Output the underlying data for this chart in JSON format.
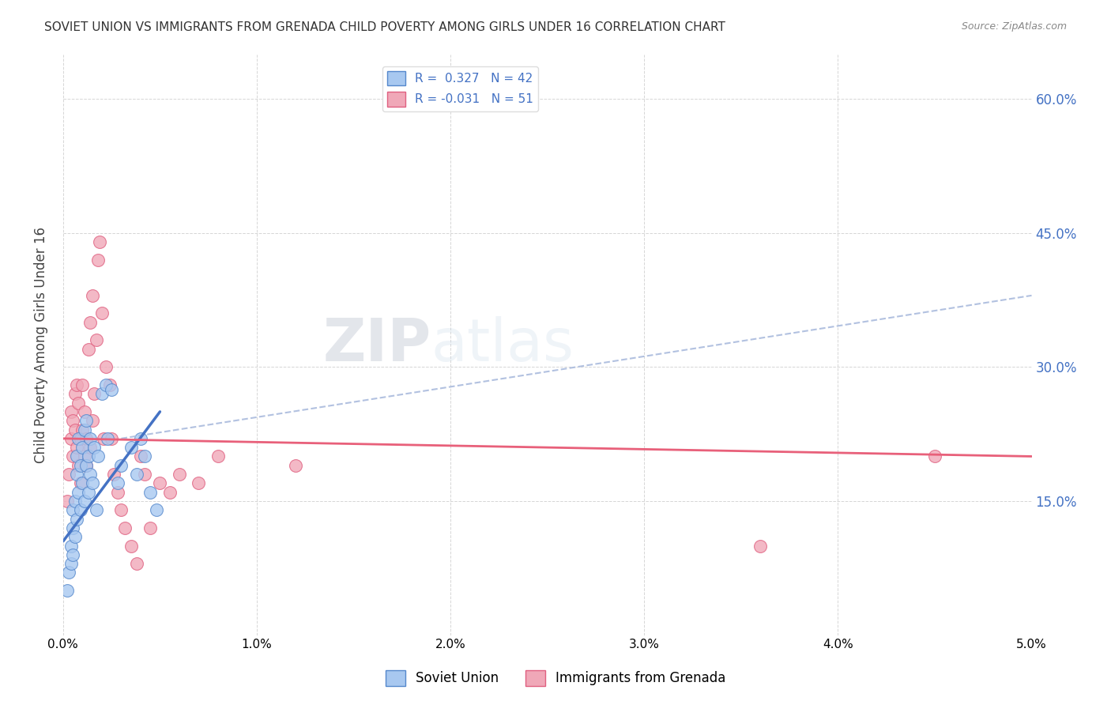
{
  "title": "SOVIET UNION VS IMMIGRANTS FROM GRENADA CHILD POVERTY AMONG GIRLS UNDER 16 CORRELATION CHART",
  "source": "Source: ZipAtlas.com",
  "ylabel": "Child Poverty Among Girls Under 16",
  "xlim": [
    0.0,
    5.0
  ],
  "ylim": [
    0.0,
    65.0
  ],
  "yticks": [
    15.0,
    30.0,
    45.0,
    60.0
  ],
  "xticks": [
    0.0,
    1.0,
    2.0,
    3.0,
    4.0,
    5.0
  ],
  "series1_label": "Soviet Union",
  "series2_label": "Immigrants from Grenada",
  "series1_R": 0.327,
  "series1_N": 42,
  "series2_R": -0.031,
  "series2_N": 51,
  "series1_color": "#a8c8f0",
  "series2_color": "#f0a8b8",
  "series1_edge_color": "#5588cc",
  "series2_edge_color": "#e06080",
  "trend1_color": "#4472c4",
  "trend2_color": "#e8607a",
  "dash_color": "#aabbdd",
  "background_color": "#ffffff",
  "grid_color": "#cccccc",
  "right_axis_color": "#4472c4",
  "watermark": "ZIPatlas",
  "series1_x": [
    0.02,
    0.03,
    0.04,
    0.04,
    0.05,
    0.05,
    0.05,
    0.06,
    0.06,
    0.07,
    0.07,
    0.07,
    0.08,
    0.08,
    0.09,
    0.09,
    0.1,
    0.1,
    0.11,
    0.11,
    0.12,
    0.12,
    0.13,
    0.13,
    0.14,
    0.14,
    0.15,
    0.16,
    0.17,
    0.18,
    0.2,
    0.22,
    0.23,
    0.25,
    0.28,
    0.3,
    0.35,
    0.38,
    0.4,
    0.42,
    0.45,
    0.48
  ],
  "series1_y": [
    5.0,
    7.0,
    8.0,
    10.0,
    9.0,
    12.0,
    14.0,
    11.0,
    15.0,
    13.0,
    18.0,
    20.0,
    16.0,
    22.0,
    14.0,
    19.0,
    21.0,
    17.0,
    23.0,
    15.0,
    19.0,
    24.0,
    16.0,
    20.0,
    22.0,
    18.0,
    17.0,
    21.0,
    14.0,
    20.0,
    27.0,
    28.0,
    22.0,
    27.5,
    17.0,
    19.0,
    21.0,
    18.0,
    22.0,
    20.0,
    16.0,
    14.0
  ],
  "series2_x": [
    0.02,
    0.03,
    0.04,
    0.04,
    0.05,
    0.05,
    0.06,
    0.06,
    0.07,
    0.07,
    0.08,
    0.08,
    0.09,
    0.09,
    0.1,
    0.1,
    0.11,
    0.11,
    0.12,
    0.12,
    0.13,
    0.14,
    0.14,
    0.15,
    0.15,
    0.16,
    0.17,
    0.18,
    0.19,
    0.2,
    0.21,
    0.22,
    0.24,
    0.25,
    0.26,
    0.28,
    0.3,
    0.32,
    0.35,
    0.38,
    0.4,
    0.42,
    0.45,
    0.5,
    0.55,
    0.6,
    0.7,
    0.8,
    1.2,
    3.6,
    4.5
  ],
  "series2_y": [
    15.0,
    18.0,
    22.0,
    25.0,
    20.0,
    24.0,
    23.0,
    27.0,
    21.0,
    28.0,
    19.0,
    26.0,
    17.0,
    22.0,
    23.0,
    28.0,
    20.0,
    25.0,
    22.0,
    19.0,
    32.0,
    21.0,
    35.0,
    24.0,
    38.0,
    27.0,
    33.0,
    42.0,
    44.0,
    36.0,
    22.0,
    30.0,
    28.0,
    22.0,
    18.0,
    16.0,
    14.0,
    12.0,
    10.0,
    8.0,
    20.0,
    18.0,
    12.0,
    17.0,
    16.0,
    18.0,
    17.0,
    20.0,
    19.0,
    10.0,
    20.0
  ],
  "trend1_x0": 0.0,
  "trend1_y0": 10.5,
  "trend1_x1": 0.5,
  "trend1_y1": 25.0,
  "trend2_x0": 0.0,
  "trend2_y0": 22.0,
  "trend2_x1": 5.0,
  "trend2_y1": 20.0,
  "dash_x0": 0.3,
  "dash_y0": 22.0,
  "dash_x1": 5.0,
  "dash_y1": 38.0
}
